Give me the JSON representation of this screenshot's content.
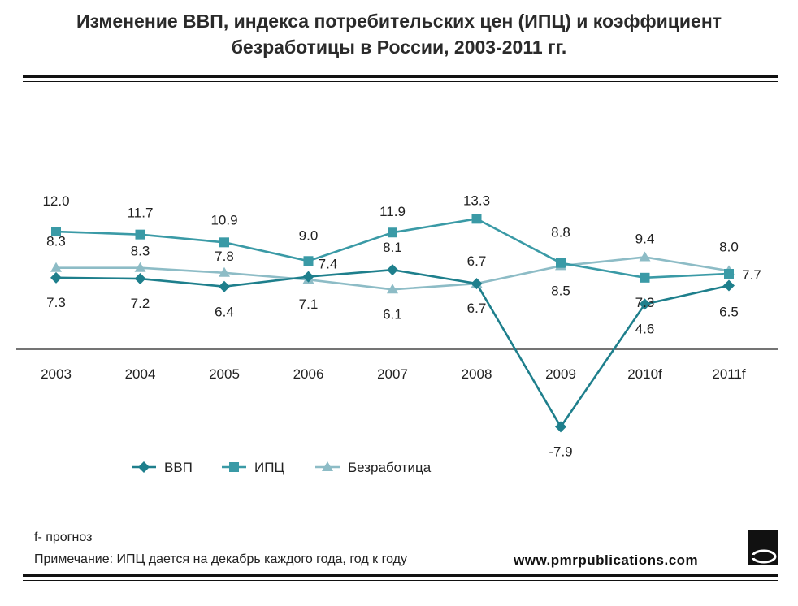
{
  "header": {
    "title_line1": "Изменение ВВП, индекса потребительских цен (ИПЦ) и коэффициент",
    "title_line2": "безработицы в России, 2003-2011 гг."
  },
  "footer": {
    "forecast_note": "f- прогноз",
    "remark": "Примечание: ИПЦ дается на декабрь каждого года, год к году",
    "website": "www.pmrpublications.com"
  },
  "chart_data": {
    "type": "line",
    "categories": [
      "2003",
      "2004",
      "2005",
      "2006",
      "2007",
      "2008",
      "2009",
      "2010f",
      "2011f"
    ],
    "series": [
      {
        "name": "ВВП",
        "values": [
          7.3,
          7.2,
          6.4,
          7.4,
          8.1,
          6.7,
          -7.9,
          4.6,
          6.5
        ],
        "color": "#1e7f8c",
        "marker": "diamond"
      },
      {
        "name": "ИПЦ",
        "values": [
          12.0,
          11.7,
          10.9,
          9.0,
          11.9,
          13.3,
          8.8,
          7.3,
          7.7
        ],
        "color": "#3a9aa6",
        "marker": "square"
      },
      {
        "name": "Безработица",
        "values": [
          8.3,
          8.3,
          7.8,
          7.1,
          6.1,
          6.7,
          8.5,
          9.4,
          8.0
        ],
        "color": "#8dbcc6",
        "marker": "triangle"
      }
    ],
    "legend_position": "bottom-left",
    "grid": false
  }
}
